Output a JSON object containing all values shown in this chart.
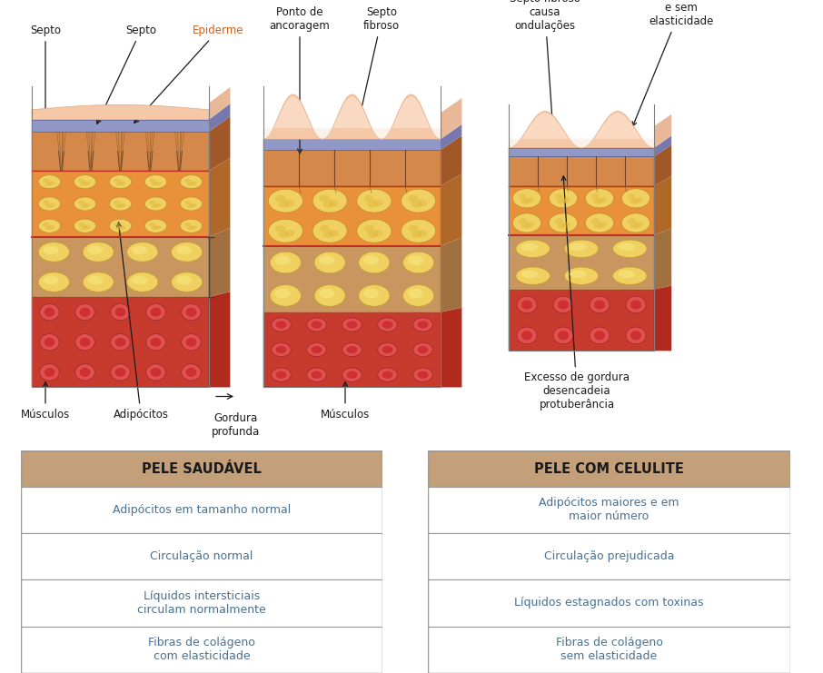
{
  "bg_color": "#ffffff",
  "header_color": "#c4a07a",
  "header_text_color": "#1a1a1a",
  "row_text_color": "#4a7090",
  "border_color": "#999999",
  "table1_title": "PELE SAUDÁVEL",
  "table2_title": "PELE COM CELULITE",
  "table1_rows": [
    "Adipócitos em tamanho normal",
    "Circulação normal",
    "Líquidos intersticiais\ncirculam normalmente",
    "Fibras de colágeno\ncom elasticidade"
  ],
  "table2_rows": [
    "Adipócitos maiores e em\nmaior número",
    "Circulação prejudicada",
    "Líquidos estagnados com toxinas",
    "Fibras de colágeno\nsem elasticidade"
  ]
}
